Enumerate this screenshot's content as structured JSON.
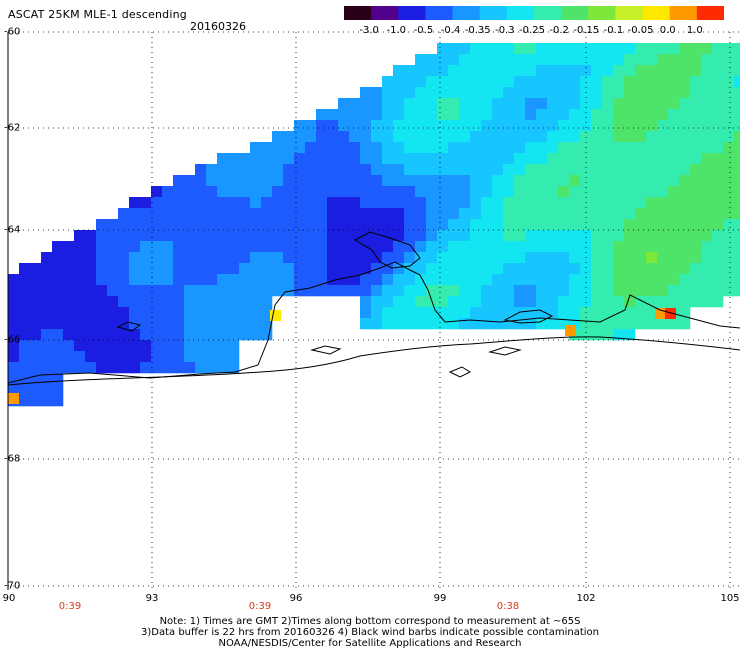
{
  "header": {
    "title": "ASCAT 25KM MLE-1 descending",
    "date": "20160326"
  },
  "colorbar": {
    "ticks": [
      "-3.0",
      "-1.0",
      "-0.5",
      "-0.4",
      "-0.35",
      "-0.3",
      "-0.25",
      "-0.2",
      "-0.15",
      "-0.1",
      "-0.05",
      "0.0",
      "1.0"
    ],
    "colors": [
      "#2a0018",
      "#52008c",
      "#1b1de0",
      "#1e5bff",
      "#1996ff",
      "#18c6ff",
      "#13e6f0",
      "#35ecb0",
      "#4ee46a",
      "#7ee83a",
      "#c8f028",
      "#ffe800",
      "#ff9a00",
      "#ff2a00"
    ]
  },
  "map": {
    "lat_labels": [
      "-60",
      "-62",
      "-64",
      "-66",
      "-68",
      "-70"
    ],
    "lon_labels": [
      "90",
      "93",
      "96",
      "99",
      "102",
      "105"
    ],
    "time_labels": [
      "0:39",
      "0:39",
      "0:38"
    ]
  },
  "footer": {
    "note_line1": "Note: 1) Times are GMT 2)Times along bottom correspond to measurement at ~65S",
    "note_line2": "3)Data buffer is 22 hrs from 20160326 4) Black wind barbs indicate possible contamination",
    "note_line3": "NOAA/NESDIS/Center for Satellite Applications and Research"
  }
}
